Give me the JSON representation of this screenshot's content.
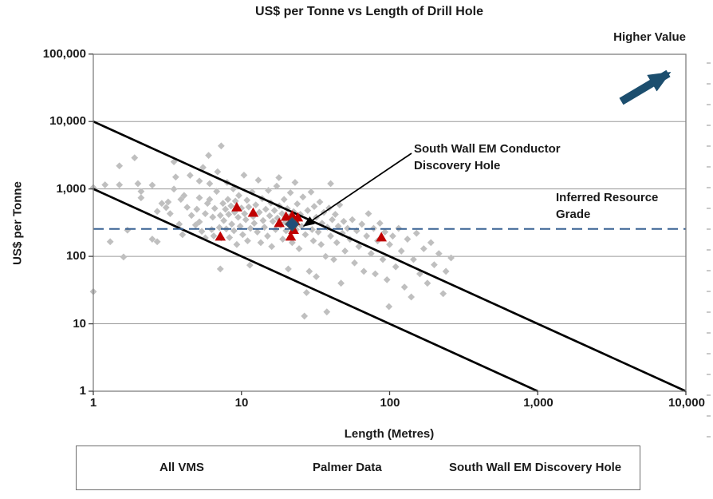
{
  "chart_data": {
    "type": "scatter",
    "title": "US$ per Tonne vs Length of Drill Hole",
    "xlabel": "Length (Metres)",
    "ylabel": "US$ per Tonne",
    "x_scale": "log",
    "y_scale": "log",
    "xlim": [
      1,
      10000
    ],
    "ylim": [
      1,
      100000
    ],
    "x_tick_values": [
      1,
      10,
      100,
      1000,
      10000
    ],
    "x_tick_labels": [
      "1",
      "10",
      "100",
      "1,000",
      "10,000"
    ],
    "y_tick_values": [
      100000,
      10000,
      1000,
      100,
      10,
      1
    ],
    "y_tick_labels": [
      "100,000",
      "10,000",
      "1,000",
      "100",
      "10",
      "1"
    ],
    "grid": "horizontal lines at each y decade",
    "legend_position": "bottom",
    "reference_lines": {
      "upper_envelope": {
        "type": "solid-black",
        "from_xy": [
          1,
          10000
        ],
        "to_xy": [
          10000,
          1
        ]
      },
      "lower_envelope": {
        "type": "solid-black",
        "from_xy": [
          1,
          1000
        ],
        "to_xy": [
          1000,
          1
        ]
      },
      "inferred_resource_grade": {
        "type": "dashed-blue-horizontal",
        "y": 255
      }
    },
    "annotations": {
      "higher_value": "Higher Value",
      "south_wall_line1": "South Wall EM Conductor",
      "south_wall_line2": "Discovery Hole",
      "inferred_line1": "Inferred Resource",
      "inferred_line2": "Grade"
    },
    "series": [
      {
        "name": "All VMS",
        "marker": "diamond",
        "color": "#BFBFBF",
        "points": [
          [
            1,
            1050
          ],
          [
            1,
            30
          ],
          [
            1.2,
            1150
          ],
          [
            1.5,
            1150
          ],
          [
            1.5,
            2200
          ],
          [
            1.3,
            165
          ],
          [
            1.6,
            98
          ],
          [
            1.7,
            245
          ],
          [
            1.9,
            2900
          ],
          [
            2,
            1200
          ],
          [
            2.1,
            920
          ],
          [
            2.1,
            740
          ],
          [
            2.5,
            1140
          ],
          [
            2.5,
            180
          ],
          [
            2.7,
            165
          ],
          [
            2.7,
            465
          ],
          [
            2.9,
            610
          ],
          [
            3.1,
            530
          ],
          [
            3.2,
            640
          ],
          [
            3.3,
            430
          ],
          [
            3.5,
            2530
          ],
          [
            3.5,
            995
          ],
          [
            3.6,
            1500
          ],
          [
            3.8,
            300
          ],
          [
            3.9,
            700
          ],
          [
            4,
            210
          ],
          [
            4.1,
            800
          ],
          [
            4.3,
            535
          ],
          [
            4.5,
            1590
          ],
          [
            4.6,
            405
          ],
          [
            4.9,
            292
          ],
          [
            5,
            500
          ],
          [
            5.2,
            1310
          ],
          [
            5.2,
            740
          ],
          [
            5.2,
            325
          ],
          [
            5.4,
            235
          ],
          [
            5.5,
            2080
          ],
          [
            5.7,
            430
          ],
          [
            5.7,
            188
          ],
          [
            5.9,
            610
          ],
          [
            6,
            3140
          ],
          [
            6.1,
            1200
          ],
          [
            6.1,
            700
          ],
          [
            6.3,
            250
          ],
          [
            6.4,
            382
          ],
          [
            6.5,
            201
          ],
          [
            6.6,
            515
          ],
          [
            6.8,
            920
          ],
          [
            6.9,
            1800
          ],
          [
            7.1,
            268
          ],
          [
            7.2,
            405
          ],
          [
            7.2,
            65
          ],
          [
            7.3,
            188
          ],
          [
            7.3,
            4350
          ],
          [
            7.5,
            610
          ],
          [
            7.6,
            340
          ],
          [
            7.8,
            500
          ],
          [
            7.9,
            255
          ],
          [
            8,
            1250
          ],
          [
            8.1,
            700
          ],
          [
            8.2,
            420
          ],
          [
            8.3,
            190
          ],
          [
            8.5,
            560
          ],
          [
            8.6,
            300
          ],
          [
            8.8,
            1000
          ],
          [
            8.9,
            240
          ],
          [
            9,
            450
          ],
          [
            9.1,
            660
          ],
          [
            9.3,
            150
          ],
          [
            9.5,
            380
          ],
          [
            9.6,
            800
          ],
          [
            9.8,
            280
          ],
          [
            10,
            520
          ],
          [
            10.2,
            210
          ],
          [
            10.4,
            1600
          ],
          [
            10.5,
            430
          ],
          [
            10.7,
            350
          ],
          [
            10.9,
            680
          ],
          [
            11,
            170
          ],
          [
            11.2,
            540
          ],
          [
            11.4,
            74
          ],
          [
            11.5,
            260
          ],
          [
            11.8,
            900
          ],
          [
            12,
            390
          ],
          [
            12.2,
            310
          ],
          [
            12.5,
            580
          ],
          [
            12.8,
            230
          ],
          [
            13,
            1350
          ],
          [
            13.2,
            450
          ],
          [
            13.5,
            160
          ],
          [
            13.8,
            720
          ],
          [
            14,
            340
          ],
          [
            14.3,
            270
          ],
          [
            14.6,
            500
          ],
          [
            15,
            200
          ],
          [
            15.2,
            950
          ],
          [
            15.5,
            400
          ],
          [
            15.8,
            620
          ],
          [
            16,
            140
          ],
          [
            16.3,
            330
          ],
          [
            16.7,
            480
          ],
          [
            17,
            250
          ],
          [
            17.3,
            1100
          ],
          [
            17.5,
            370
          ],
          [
            17.9,
            1470
          ],
          [
            18,
            560
          ],
          [
            18.4,
            290
          ],
          [
            18.8,
            430
          ],
          [
            19,
            180
          ],
          [
            19.4,
            700
          ],
          [
            19.8,
            320
          ],
          [
            20,
            240
          ],
          [
            20.4,
            510
          ],
          [
            20.7,
            65
          ],
          [
            21,
            390
          ],
          [
            21.4,
            880
          ],
          [
            21.8,
            300
          ],
          [
            22,
            160
          ],
          [
            22.5,
            460
          ],
          [
            23,
            1250
          ],
          [
            23.4,
            250
          ],
          [
            23.8,
            600
          ],
          [
            24,
            350
          ],
          [
            24.5,
            130
          ],
          [
            25,
            420
          ],
          [
            25.5,
            280
          ],
          [
            26,
            760
          ],
          [
            26.6,
            13
          ],
          [
            27,
            210
          ],
          [
            27.5,
            29
          ],
          [
            28,
            480
          ],
          [
            28.7,
            60
          ],
          [
            29,
            330
          ],
          [
            29.5,
            900
          ],
          [
            30,
            250
          ],
          [
            30.6,
            170
          ],
          [
            31,
            550
          ],
          [
            32,
            50
          ],
          [
            32,
            380
          ],
          [
            33,
            230
          ],
          [
            33.8,
            640
          ],
          [
            34.5,
            150
          ],
          [
            35,
            310
          ],
          [
            36,
            450
          ],
          [
            37,
            100
          ],
          [
            37.7,
            15
          ],
          [
            38,
            270
          ],
          [
            39,
            520
          ],
          [
            40,
            1200
          ],
          [
            40,
            200
          ],
          [
            41,
            350
          ],
          [
            42,
            90
          ],
          [
            43,
            420
          ],
          [
            44,
            160
          ],
          [
            45,
            280
          ],
          [
            46,
            580
          ],
          [
            47,
            40
          ],
          [
            48,
            220
          ],
          [
            49,
            330
          ],
          [
            50,
            120
          ],
          [
            52,
            260
          ],
          [
            54,
            180
          ],
          [
            56,
            350
          ],
          [
            58,
            80
          ],
          [
            60,
            240
          ],
          [
            62,
            140
          ],
          [
            65,
            300
          ],
          [
            67,
            60
          ],
          [
            70,
            200
          ],
          [
            72,
            430
          ],
          [
            75,
            110
          ],
          [
            78,
            260
          ],
          [
            80,
            55
          ],
          [
            83,
            170
          ],
          [
            86,
            310
          ],
          [
            90,
            90
          ],
          [
            93,
            230
          ],
          [
            96,
            45
          ],
          [
            99,
            18
          ],
          [
            100,
            150
          ],
          [
            105,
            200
          ],
          [
            110,
            70
          ],
          [
            115,
            260
          ],
          [
            120,
            120
          ],
          [
            126,
            35
          ],
          [
            132,
            180
          ],
          [
            140,
            25
          ],
          [
            145,
            90
          ],
          [
            152,
            220
          ],
          [
            160,
            55
          ],
          [
            170,
            130
          ],
          [
            180,
            40
          ],
          [
            190,
            160
          ],
          [
            200,
            75
          ],
          [
            215,
            110
          ],
          [
            230,
            28
          ],
          [
            240,
            60
          ],
          [
            260,
            95
          ]
        ]
      },
      {
        "name": "Palmer Data",
        "marker": "triangle",
        "color": "#C00000",
        "points": [
          [
            7.2,
            195
          ],
          [
            9.3,
            530
          ],
          [
            12,
            440
          ],
          [
            18,
            310
          ],
          [
            20,
            385
          ],
          [
            22,
            400
          ],
          [
            23,
            330
          ],
          [
            24,
            375
          ],
          [
            21.5,
            195
          ],
          [
            22.5,
            245
          ],
          [
            88,
            190
          ]
        ]
      },
      {
        "name": "South Wall EM Discovery Hole",
        "marker": "diamond-large",
        "color": "#1F4E79",
        "points": [
          [
            22,
            300
          ]
        ]
      }
    ]
  },
  "colors": {
    "gray_points": "#BFBFBF",
    "palmer_red": "#C00000",
    "south_wall_navy": "#1F4E79",
    "dashed_line": "#376092",
    "envelope_line": "#000000",
    "higher_value_arrow": "#1C4E6E",
    "grid": "#9A9A9A",
    "plot_border": "#7F7F7F",
    "text": "#1A1A1A"
  }
}
